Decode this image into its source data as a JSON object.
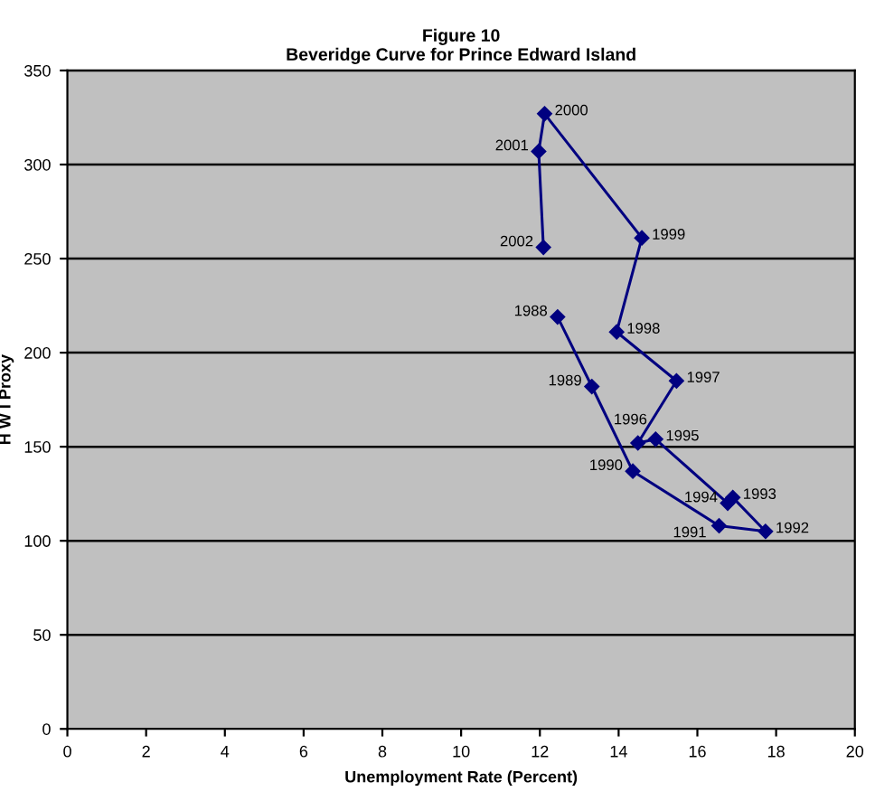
{
  "chart_data": {
    "type": "line",
    "title": "Figure 10\nBeveridge Curve for Prince Edward Island",
    "xlabel": "Unemployment Rate (Percent)",
    "ylabel": "H W I Proxy",
    "x": [
      12.45,
      13.32,
      14.36,
      16.55,
      17.73,
      16.9,
      16.77,
      14.94,
      14.49,
      15.47,
      13.95,
      14.59,
      12.12,
      11.97,
      12.09
    ],
    "values": [
      219,
      182,
      137,
      108,
      105,
      123,
      120,
      154,
      152,
      185,
      211,
      261,
      327,
      307,
      256
    ],
    "color": "#000080",
    "marker": "diamond",
    "line_style": "solid",
    "annotations": [
      {
        "text": "1988",
        "x": 12.45,
        "y": 219
      },
      {
        "text": "1989",
        "x": 13.32,
        "y": 182
      },
      {
        "text": "1990",
        "x": 14.36,
        "y": 137
      },
      {
        "text": "1991",
        "x": 16.55,
        "y": 108
      },
      {
        "text": "1992",
        "x": 17.73,
        "y": 105
      },
      {
        "text": "1993",
        "x": 16.9,
        "y": 123
      },
      {
        "text": "1994",
        "x": 16.77,
        "y": 120
      },
      {
        "text": "1995",
        "x": 14.94,
        "y": 154
      },
      {
        "text": "1996",
        "x": 14.49,
        "y": 152
      },
      {
        "text": "1997",
        "x": 15.47,
        "y": 185
      },
      {
        "text": "1998",
        "x": 13.95,
        "y": 211
      },
      {
        "text": "1999",
        "x": 14.59,
        "y": 261
      },
      {
        "text": "2000",
        "x": 12.12,
        "y": 327
      },
      {
        "text": "2001",
        "x": 11.97,
        "y": 307
      },
      {
        "text": "2002",
        "x": 12.09,
        "y": 256
      }
    ],
    "xlim": [
      0,
      20
    ],
    "xticks": [
      0,
      2,
      4,
      6,
      8,
      10,
      12,
      14,
      16,
      18,
      20
    ],
    "ylim": [
      0,
      350
    ],
    "yticks": [
      0,
      50,
      100,
      150,
      200,
      250,
      300,
      350
    ],
    "grid": "y",
    "legend": false
  }
}
